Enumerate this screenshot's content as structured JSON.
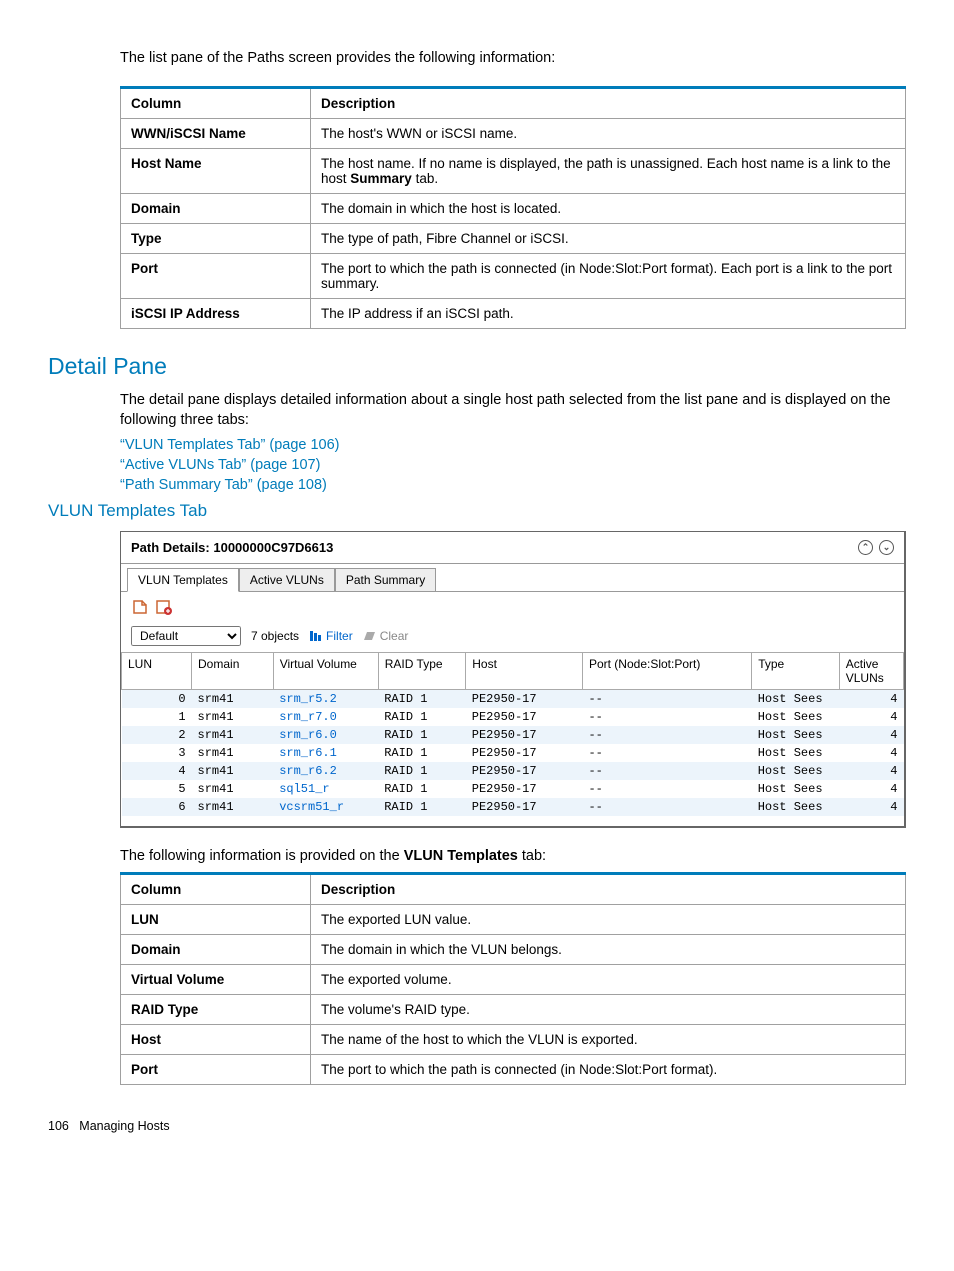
{
  "intro": "The list pane of the Paths screen provides the following information:",
  "table1": {
    "head_col": "Column",
    "head_desc": "Description",
    "rows": [
      {
        "col": "WWN/iSCSI Name",
        "desc": "The host's WWN or iSCSI name."
      },
      {
        "col": "Host Name",
        "desc_pre": "The host name. If no name is displayed, the path is unassigned. Each host name is a link to the host ",
        "desc_bold": "Summary",
        "desc_post": " tab."
      },
      {
        "col": "Domain",
        "desc": "The domain in which the host is located."
      },
      {
        "col": "Type",
        "desc": "The type of path, Fibre Channel or iSCSI."
      },
      {
        "col": "Port",
        "desc": "The port to which the path is connected (in Node:Slot:Port format). Each port is a link to the port summary."
      },
      {
        "col": "iSCSI IP Address",
        "desc": "The IP address if an iSCSI path."
      }
    ]
  },
  "detail_heading": "Detail Pane",
  "detail_text": "The detail pane displays detailed information about a single host path selected from the list pane and is displayed on the following three tabs:",
  "links": [
    "“VLUN Templates Tab” (page 106)",
    "“Active VLUNs Tab” (page 107)",
    "“Path Summary Tab” (page 108)"
  ],
  "sub_heading": "VLUN Templates Tab",
  "panel": {
    "title": "Path Details: 10000000C97D6613",
    "tabs": [
      "VLUN Templates",
      "Active VLUNs",
      "Path Summary"
    ],
    "dropdown": "Default",
    "objects_label": "7 objects",
    "filter_label": "Filter",
    "clear_label": "Clear",
    "columns": [
      "LUN",
      "Domain",
      "Virtual Volume",
      "RAID Type",
      "Host",
      "Port (Node:Slot:Port)",
      "Type",
      "Active VLUNs"
    ],
    "rows": [
      {
        "lun": "0",
        "domain": "srm41",
        "vv": "srm_r5.2",
        "raid": "RAID 1",
        "host": "PE2950-17",
        "port": "--",
        "type": "Host Sees",
        "av": "4"
      },
      {
        "lun": "1",
        "domain": "srm41",
        "vv": "srm_r7.0",
        "raid": "RAID 1",
        "host": "PE2950-17",
        "port": "--",
        "type": "Host Sees",
        "av": "4"
      },
      {
        "lun": "2",
        "domain": "srm41",
        "vv": "srm_r6.0",
        "raid": "RAID 1",
        "host": "PE2950-17",
        "port": "--",
        "type": "Host Sees",
        "av": "4"
      },
      {
        "lun": "3",
        "domain": "srm41",
        "vv": "srm_r6.1",
        "raid": "RAID 1",
        "host": "PE2950-17",
        "port": "--",
        "type": "Host Sees",
        "av": "4"
      },
      {
        "lun": "4",
        "domain": "srm41",
        "vv": "srm_r6.2",
        "raid": "RAID 1",
        "host": "PE2950-17",
        "port": "--",
        "type": "Host Sees",
        "av": "4"
      },
      {
        "lun": "5",
        "domain": "srm41",
        "vv": "sql51_r",
        "raid": "RAID 1",
        "host": "PE2950-17",
        "port": "--",
        "type": "Host Sees",
        "av": "4"
      },
      {
        "lun": "6",
        "domain": "srm41",
        "vv": "vcsrm51_r",
        "raid": "RAID 1",
        "host": "PE2950-17",
        "port": "--",
        "type": "Host Sees",
        "av": "4"
      }
    ]
  },
  "post_text_pre": "The following information is provided on the ",
  "post_text_bold": "VLUN Templates",
  "post_text_post": " tab:",
  "table2": {
    "head_col": "Column",
    "head_desc": "Description",
    "rows": [
      {
        "col": "LUN",
        "desc": "The exported LUN value."
      },
      {
        "col": "Domain",
        "desc": "The domain in which the VLUN belongs."
      },
      {
        "col": "Virtual Volume",
        "desc": "The exported volume."
      },
      {
        "col": "RAID Type",
        "desc": "The volume's RAID type."
      },
      {
        "col": "Host",
        "desc": "The name of the host to which the VLUN is exported."
      },
      {
        "col": "Port",
        "desc": "The port to which the path is connected (in Node:Slot:Port format)."
      }
    ]
  },
  "page_num": "106",
  "footer_text": "Managing Hosts"
}
